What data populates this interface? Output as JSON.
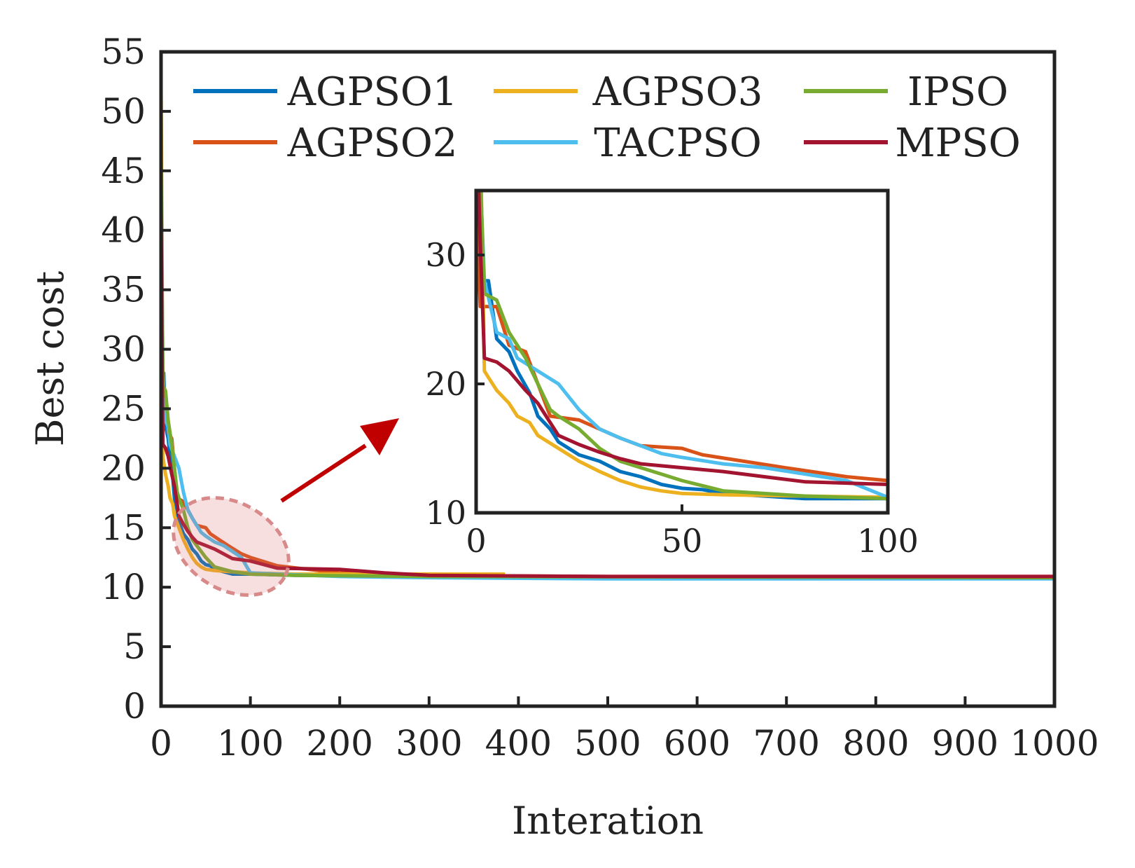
{
  "chart_data": {
    "type": "line",
    "xlabel": "Interation",
    "ylabel": "Best cost",
    "xlim": [
      0,
      1000
    ],
    "ylim": [
      0,
      55
    ],
    "xticks": [
      0,
      100,
      200,
      300,
      400,
      500,
      600,
      700,
      800,
      900,
      1000
    ],
    "xtick_labels": [
      "0",
      "100",
      "200",
      "300",
      "400",
      "500",
      "600",
      "700",
      "800",
      "900",
      "1000"
    ],
    "yticks": [
      0,
      5,
      10,
      15,
      20,
      25,
      30,
      35,
      40,
      45,
      50,
      55
    ],
    "ytick_labels": [
      "0",
      "5",
      "10",
      "15",
      "20",
      "25",
      "30",
      "35",
      "40",
      "45",
      "50",
      "55"
    ],
    "legend_position": "top",
    "series": [
      {
        "name": "AGPSO1",
        "color": "#0072BD",
        "points": [
          [
            0,
            28
          ],
          [
            3,
            28
          ],
          [
            5,
            23.5
          ],
          [
            8,
            22.5
          ],
          [
            10,
            21
          ],
          [
            13,
            19.3
          ],
          [
            15,
            17.5
          ],
          [
            18,
            16.5
          ],
          [
            20,
            15.5
          ],
          [
            25,
            14.5
          ],
          [
            30,
            14
          ],
          [
            35,
            13.2
          ],
          [
            40,
            12.8
          ],
          [
            45,
            12.2
          ],
          [
            50,
            11.9
          ],
          [
            55,
            11.8
          ],
          [
            60,
            11.5
          ],
          [
            70,
            11.3
          ],
          [
            80,
            11.1
          ],
          [
            100,
            11.1
          ],
          [
            150,
            11
          ],
          [
            300,
            10.9
          ],
          [
            500,
            10.8
          ],
          [
            1000,
            10.8
          ]
        ]
      },
      {
        "name": "AGPSO2",
        "color": "#D95319",
        "points": [
          [
            0,
            34
          ],
          [
            1,
            26
          ],
          [
            5,
            26
          ],
          [
            8,
            23
          ],
          [
            12,
            22.5
          ],
          [
            15,
            20
          ],
          [
            18,
            17.5
          ],
          [
            25,
            17.2
          ],
          [
            30,
            16.5
          ],
          [
            35,
            15.8
          ],
          [
            40,
            15.2
          ],
          [
            50,
            15
          ],
          [
            55,
            14.5
          ],
          [
            65,
            14
          ],
          [
            75,
            13.5
          ],
          [
            90,
            12.8
          ],
          [
            100,
            12.5
          ],
          [
            130,
            11.8
          ],
          [
            200,
            11.2
          ],
          [
            300,
            11
          ],
          [
            500,
            10.9
          ],
          [
            1000,
            10.9
          ]
        ]
      },
      {
        "name": "AGPSO3",
        "color": "#EDB120",
        "points": [
          [
            0,
            52
          ],
          [
            1,
            40
          ],
          [
            2,
            21
          ],
          [
            3,
            20.5
          ],
          [
            5,
            19.5
          ],
          [
            8,
            18.5
          ],
          [
            10,
            17.5
          ],
          [
            13,
            17
          ],
          [
            15,
            16
          ],
          [
            20,
            15
          ],
          [
            25,
            14
          ],
          [
            30,
            13.2
          ],
          [
            35,
            12.5
          ],
          [
            40,
            12
          ],
          [
            45,
            11.7
          ],
          [
            50,
            11.5
          ],
          [
            60,
            11.4
          ],
          [
            80,
            11.3
          ],
          [
            100,
            11.2
          ],
          [
            150,
            11.1
          ],
          [
            250,
            11.1
          ],
          [
            385,
            11.1
          ]
        ]
      },
      {
        "name": "TACPSO",
        "color": "#4DBEEE",
        "points": [
          [
            0,
            44
          ],
          [
            2,
            28
          ],
          [
            5,
            24
          ],
          [
            8,
            23.5
          ],
          [
            10,
            22
          ],
          [
            15,
            21
          ],
          [
            20,
            20
          ],
          [
            25,
            18
          ],
          [
            30,
            16.5
          ],
          [
            35,
            15.8
          ],
          [
            40,
            15.2
          ],
          [
            45,
            14.6
          ],
          [
            50,
            14.3
          ],
          [
            60,
            13.8
          ],
          [
            70,
            13.5
          ],
          [
            80,
            13
          ],
          [
            90,
            12.5
          ],
          [
            100,
            11.2
          ],
          [
            130,
            11.1
          ],
          [
            200,
            10.9
          ],
          [
            300,
            10.8
          ],
          [
            500,
            10.7
          ],
          [
            1000,
            10.7
          ]
        ]
      },
      {
        "name": "IPSO",
        "color": "#77AC30",
        "points": [
          [
            0,
            46
          ],
          [
            2,
            27
          ],
          [
            5,
            26.5
          ],
          [
            8,
            24
          ],
          [
            12,
            22
          ],
          [
            15,
            20
          ],
          [
            18,
            18
          ],
          [
            20,
            17.5
          ],
          [
            25,
            16.5
          ],
          [
            30,
            15
          ],
          [
            35,
            14
          ],
          [
            40,
            13.5
          ],
          [
            45,
            13
          ],
          [
            50,
            12.5
          ],
          [
            60,
            11.7
          ],
          [
            70,
            11.5
          ],
          [
            80,
            11.3
          ],
          [
            100,
            11.1
          ],
          [
            150,
            11
          ],
          [
            300,
            10.9
          ],
          [
            1000,
            10.8
          ]
        ]
      },
      {
        "name": "MPSO",
        "color": "#A2142F",
        "points": [
          [
            0,
            42
          ],
          [
            1,
            31
          ],
          [
            2,
            22
          ],
          [
            5,
            21.7
          ],
          [
            8,
            21
          ],
          [
            12,
            19.5
          ],
          [
            15,
            18.5
          ],
          [
            18,
            17
          ],
          [
            20,
            16
          ],
          [
            25,
            15.3
          ],
          [
            30,
            14.7
          ],
          [
            35,
            14.2
          ],
          [
            40,
            13.8
          ],
          [
            50,
            13.5
          ],
          [
            60,
            13.2
          ],
          [
            70,
            12.8
          ],
          [
            80,
            12.4
          ],
          [
            100,
            12.2
          ],
          [
            130,
            11.6
          ],
          [
            200,
            11.5
          ],
          [
            250,
            11.2
          ],
          [
            300,
            11
          ],
          [
            500,
            10.9
          ],
          [
            1000,
            10.9
          ]
        ]
      }
    ],
    "annotation": "zoom ellipse around iterations 0-140 with arrow to inset",
    "inset": {
      "xlim": [
        0,
        100
      ],
      "ylim": [
        10,
        35
      ],
      "xticks": [
        0,
        50,
        100
      ],
      "xtick_labels": [
        "0",
        "50",
        "100"
      ],
      "yticks": [
        10,
        20,
        30
      ],
      "ytick_labels": [
        "10",
        "20",
        "30"
      ]
    }
  }
}
